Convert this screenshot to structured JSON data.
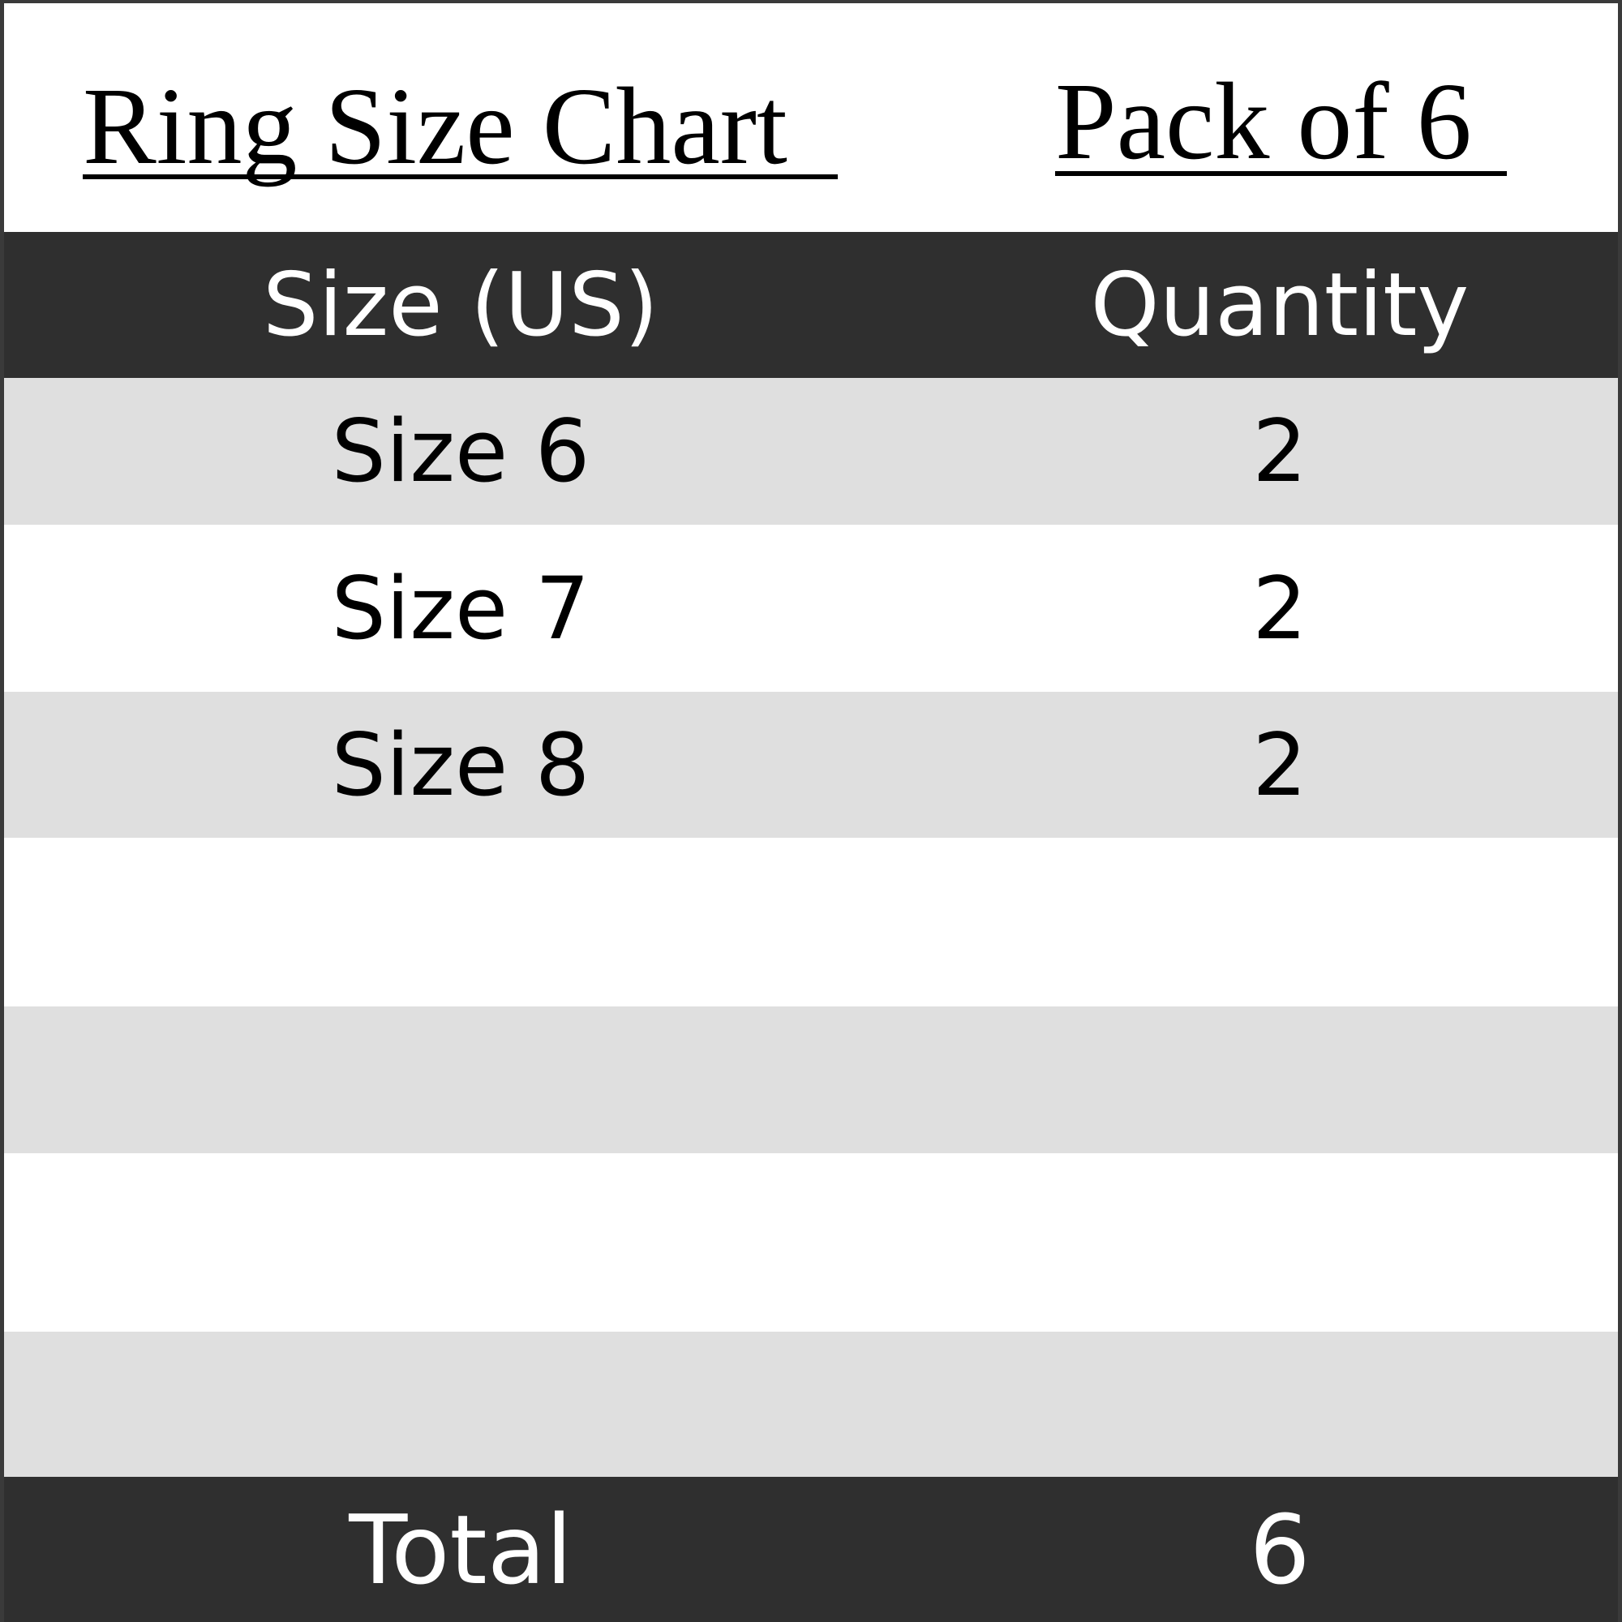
{
  "title": "Ring Size Chart",
  "pack": "Pack of 6",
  "header": {
    "size": "Size (US)",
    "quantity": "Quantity"
  },
  "rows": [
    {
      "size": "Size 6",
      "quantity": "2"
    },
    {
      "size": "Size 7",
      "quantity": "2"
    },
    {
      "size": "Size 8",
      "quantity": "2"
    },
    {
      "size": "",
      "quantity": ""
    },
    {
      "size": "",
      "quantity": ""
    },
    {
      "size": "",
      "quantity": ""
    },
    {
      "size": "",
      "quantity": ""
    }
  ],
  "total": {
    "label": "Total",
    "value": "6"
  },
  "colors": {
    "header_bg": "#2f2f2f",
    "stripe": "#dfdfdf"
  }
}
